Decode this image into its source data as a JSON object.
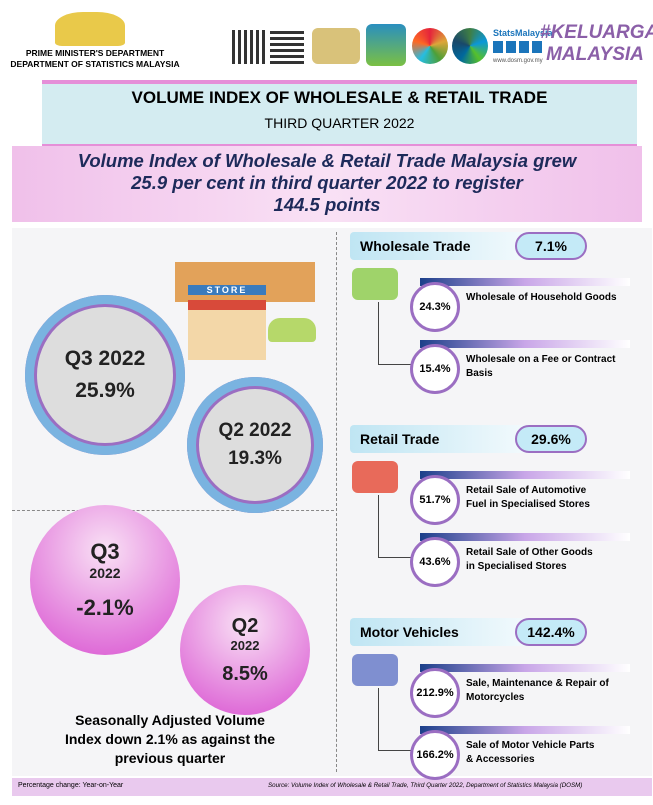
{
  "header": {
    "org_lines": [
      "PRIME MINISTER'S DEPARTMENT",
      "DEPARTMENT OF STATISTICS MALAYSIA"
    ],
    "stats_brand": "StatsMalaysia",
    "website": "www.dosm.gov.my",
    "campaign_lines": [
      "#KELUARGA",
      "MALAYSIA"
    ]
  },
  "title": "VOLUME INDEX OF WHOLESALE & RETAIL TRADE",
  "subtitle": "THIRD QUARTER 2022",
  "headline": [
    "Volume Index of Wholesale & Retail Trade Malaysia grew",
    "25.9 per cent in third quarter 2022 to register",
    "144.5 points"
  ],
  "year_on_year": {
    "store_sign": "STORE",
    "current": {
      "label": "Q3 2022",
      "value": "25.9%"
    },
    "previous": {
      "label": "Q2 2022",
      "value": "19.3%"
    }
  },
  "quarter_on_quarter": {
    "current": {
      "quarter": "Q3",
      "year": "2022",
      "value": "-2.1%"
    },
    "previous": {
      "quarter": "Q2",
      "year": "2022",
      "value": "8.5%"
    },
    "note": [
      "Seasonally Adjusted Volume",
      "Index down 2.1% as against the",
      "previous quarter"
    ]
  },
  "sectors": [
    {
      "name": "Wholesale Trade",
      "value": "7.1%",
      "items": [
        {
          "value": "24.3%",
          "label": [
            "Wholesale of Household Goods"
          ]
        },
        {
          "value": "15.4%",
          "label": [
            "Wholesale on a Fee or Contract",
            "Basis"
          ]
        }
      ]
    },
    {
      "name": "Retail Trade",
      "value": "29.6%",
      "items": [
        {
          "value": "51.7%",
          "label": [
            "Retail Sale of Automotive",
            "Fuel in Specialised Stores"
          ]
        },
        {
          "value": "43.6%",
          "label": [
            "Retail Sale of Other Goods",
            "in Specialised Stores"
          ]
        }
      ]
    },
    {
      "name": "Motor Vehicles",
      "value": "142.4%",
      "items": [
        {
          "value": "212.9%",
          "label": [
            "Sale, Maintenance & Repair of",
            "Motorcycles"
          ]
        },
        {
          "value": "166.2%",
          "label": [
            "Sale of Motor Vehicle Parts",
            "& Accessories"
          ]
        }
      ]
    }
  ],
  "footer": {
    "note": "Percentage change: Year-on-Year",
    "source": "Source: Volume Index of Wholesale & Retail Trade, Third Quarter 2022, Department of Statistics Malaysia (DOSM)"
  }
}
